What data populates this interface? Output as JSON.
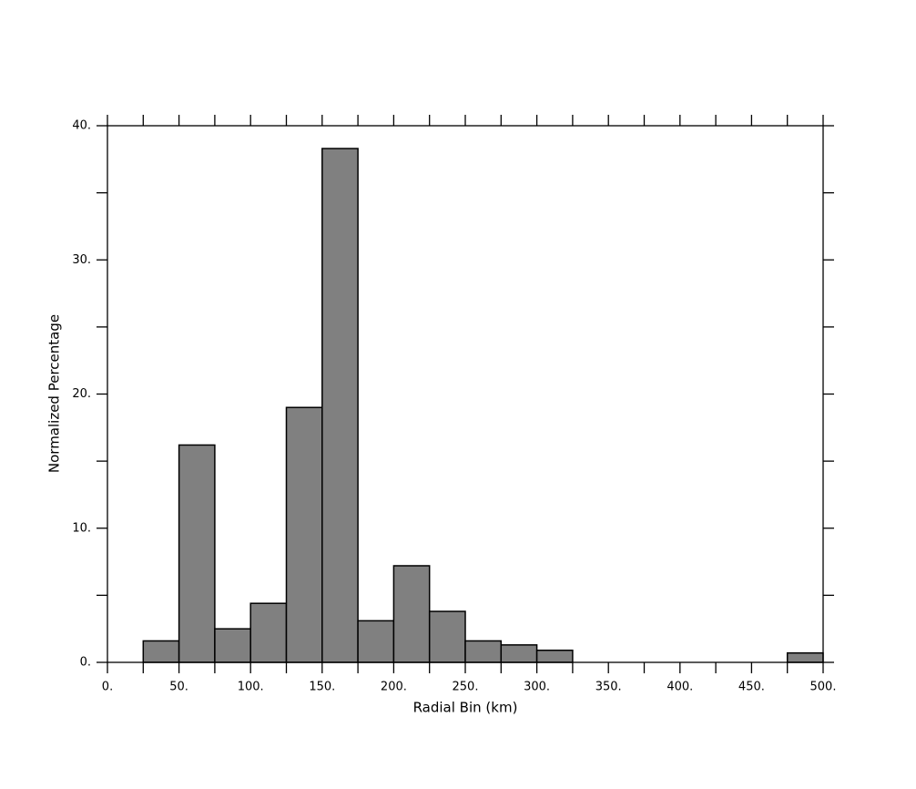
{
  "chart_data": {
    "type": "histogram",
    "xlabel": "Radial Bin (km)",
    "ylabel": "Normalized Percentage",
    "bins": [
      0,
      25,
      50,
      75,
      100,
      125,
      150,
      175,
      200,
      225,
      250,
      275,
      300,
      325,
      350,
      375,
      400,
      425,
      450,
      475,
      500
    ],
    "values": [
      0,
      1.6,
      16.2,
      2.5,
      4.4,
      19.0,
      38.3,
      3.1,
      7.2,
      3.8,
      1.6,
      1.3,
      0.9,
      0,
      0,
      0,
      0,
      0,
      0,
      0.7
    ],
    "color": "#808080",
    "xlim": [
      0,
      500
    ],
    "ylim": [
      0,
      40
    ],
    "xticks": [
      {
        "value": 0,
        "label": "0."
      },
      {
        "value": 50,
        "label": "50."
      },
      {
        "value": 100,
        "label": "100."
      },
      {
        "value": 150,
        "label": "150."
      },
      {
        "value": 200,
        "label": "200."
      },
      {
        "value": 250,
        "label": "250."
      },
      {
        "value": 300,
        "label": "300."
      },
      {
        "value": 350,
        "label": "350."
      },
      {
        "value": 400,
        "label": "400."
      },
      {
        "value": 450,
        "label": "450."
      },
      {
        "value": 500,
        "label": "500."
      }
    ],
    "xminorticks": [
      25,
      75,
      125,
      175,
      225,
      275,
      325,
      375,
      425,
      475
    ],
    "yticks": [
      {
        "value": 0,
        "label": "0."
      },
      {
        "value": 10,
        "label": "10."
      },
      {
        "value": 20,
        "label": "20."
      },
      {
        "value": 30,
        "label": "30."
      },
      {
        "value": 40,
        "label": "40."
      }
    ],
    "yminorticks": [
      5,
      15,
      25,
      35
    ]
  }
}
